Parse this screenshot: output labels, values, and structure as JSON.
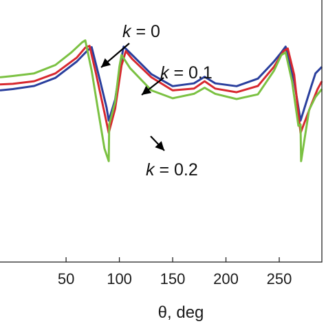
{
  "chart_data": {
    "type": "line",
    "xlabel": "θ, deg",
    "xlim": [
      -12,
      290
    ],
    "ylim": [
      0.0,
      1.0
    ],
    "x_ticks": [
      50,
      100,
      150,
      200,
      250
    ],
    "x_tick_labels": [
      "50",
      "100",
      "150",
      "200",
      "250"
    ],
    "series": [
      {
        "name": "k = 0",
        "color": "#2a3f9d",
        "points": [
          [
            -12,
            0.655
          ],
          [
            0,
            0.66
          ],
          [
            20,
            0.672
          ],
          [
            40,
            0.703
          ],
          [
            60,
            0.765
          ],
          [
            70,
            0.807
          ],
          [
            74,
            0.82
          ],
          [
            82,
            0.69
          ],
          [
            88,
            0.589
          ],
          [
            90,
            0.54
          ],
          [
            96,
            0.62
          ],
          [
            102,
            0.78
          ],
          [
            104,
            0.822
          ],
          [
            112,
            0.79
          ],
          [
            130,
            0.717
          ],
          [
            150,
            0.671
          ],
          [
            170,
            0.682
          ],
          [
            180,
            0.707
          ],
          [
            190,
            0.682
          ],
          [
            210,
            0.671
          ],
          [
            230,
            0.7
          ],
          [
            245,
            0.765
          ],
          [
            252,
            0.8
          ],
          [
            256,
            0.822
          ],
          [
            264,
            0.69
          ],
          [
            270,
            0.54
          ],
          [
            280,
            0.67
          ],
          [
            284,
            0.72
          ],
          [
            290,
            0.745
          ]
        ]
      },
      {
        "name": "k = 0.1",
        "color": "#d7282f",
        "points": [
          [
            -12,
            0.678
          ],
          [
            0,
            0.68
          ],
          [
            20,
            0.69
          ],
          [
            40,
            0.72
          ],
          [
            60,
            0.78
          ],
          [
            68,
            0.818
          ],
          [
            72,
            0.825
          ],
          [
            78,
            0.72
          ],
          [
            86,
            0.57
          ],
          [
            90,
            0.493
          ],
          [
            96,
            0.585
          ],
          [
            102,
            0.75
          ],
          [
            106,
            0.805
          ],
          [
            112,
            0.775
          ],
          [
            130,
            0.705
          ],
          [
            150,
            0.655
          ],
          [
            170,
            0.662
          ],
          [
            180,
            0.69
          ],
          [
            190,
            0.662
          ],
          [
            210,
            0.648
          ],
          [
            230,
            0.672
          ],
          [
            245,
            0.745
          ],
          [
            254,
            0.805
          ],
          [
            258,
            0.815
          ],
          [
            264,
            0.715
          ],
          [
            270,
            0.493
          ],
          [
            280,
            0.6
          ],
          [
            286,
            0.66
          ],
          [
            290,
            0.69
          ]
        ]
      },
      {
        "name": "k = 0.2",
        "color": "#7bc142",
        "points": [
          [
            -12,
            0.705
          ],
          [
            0,
            0.71
          ],
          [
            20,
            0.72
          ],
          [
            40,
            0.752
          ],
          [
            55,
            0.8
          ],
          [
            65,
            0.838
          ],
          [
            68,
            0.846
          ],
          [
            74,
            0.73
          ],
          [
            80,
            0.58
          ],
          [
            86,
            0.433
          ],
          [
            90,
            0.385
          ],
          [
            90.5,
            0.525
          ],
          [
            96,
            0.61
          ],
          [
            100,
            0.745
          ],
          [
            102,
            0.79
          ],
          [
            110,
            0.74
          ],
          [
            130,
            0.655
          ],
          [
            150,
            0.625
          ],
          [
            170,
            0.642
          ],
          [
            180,
            0.665
          ],
          [
            190,
            0.642
          ],
          [
            210,
            0.622
          ],
          [
            230,
            0.64
          ],
          [
            245,
            0.73
          ],
          [
            252,
            0.79
          ],
          [
            256,
            0.8
          ],
          [
            262,
            0.69
          ],
          [
            268,
            0.52
          ],
          [
            270,
            0.525
          ],
          [
            270.5,
            0.385
          ],
          [
            278,
            0.58
          ],
          [
            284,
            0.63
          ],
          [
            290,
            0.66
          ]
        ]
      }
    ],
    "annotations": [
      {
        "var": "k",
        "op": " = ",
        "val": "0"
      },
      {
        "var": "k",
        "op": " = ",
        "val": "0.1"
      },
      {
        "var": "k",
        "op": " = ",
        "val": "0.2"
      }
    ]
  }
}
